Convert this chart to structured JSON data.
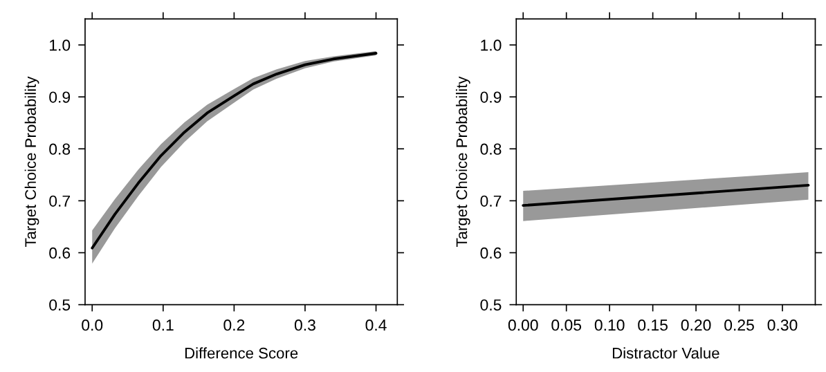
{
  "chart_data": [
    {
      "type": "line",
      "xlabel": "Difference Score",
      "ylabel": "Target Choice Probability",
      "xlim": [
        -0.01,
        0.43
      ],
      "xticks": [
        {
          "value": 0,
          "label": "0.0"
        },
        0.1,
        0.2,
        0.3,
        0.4
      ],
      "ylim": [
        0.5,
        1.05
      ],
      "yticks": [
        0.5,
        0.6,
        0.7,
        0.8,
        0.9,
        {
          "value": 1,
          "label": "1.0"
        }
      ],
      "grid": false,
      "legend": false,
      "marker": "none",
      "line_style": "solid",
      "x": [
        0,
        0.032,
        0.065,
        0.097,
        0.13,
        0.162,
        0.2,
        0.227,
        0.26,
        0.3,
        0.34,
        0.4
      ],
      "series": [
        {
          "color": "#000000",
          "values": [
            0.609,
            0.674,
            0.734,
            0.787,
            0.832,
            0.869,
            0.902,
            0.925,
            0.944,
            0.962,
            0.973,
            0.984
          ],
          "lower": [
            0.579,
            0.647,
            0.709,
            0.765,
            0.813,
            0.853,
            0.889,
            0.914,
            0.935,
            0.955,
            0.968,
            0.98
          ],
          "upper": [
            0.643,
            0.703,
            0.76,
            0.809,
            0.851,
            0.885,
            0.915,
            0.936,
            0.953,
            0.969,
            0.978,
            0.988
          ]
        }
      ]
    },
    {
      "type": "line",
      "xlabel": "Distractor Value",
      "ylabel": "Target Choice Probability",
      "xlim": [
        -0.008,
        0.338
      ],
      "xticks": [
        {
          "value": 0,
          "label": "0.00"
        },
        0.05,
        {
          "value": 0.1,
          "label": "0.10"
        },
        0.15,
        {
          "value": 0.2,
          "label": "0.20"
        },
        0.25,
        {
          "value": 0.3,
          "label": "0.30"
        }
      ],
      "ylim": [
        0.5,
        1.05
      ],
      "yticks": [
        0.5,
        0.6,
        0.7,
        0.8,
        0.9,
        {
          "value": 1,
          "label": "1.0"
        }
      ],
      "grid": false,
      "legend": false,
      "marker": "none",
      "line_style": "solid",
      "x": [
        0,
        0.33
      ],
      "series": [
        {
          "color": "#000000",
          "values": [
            0.691,
            0.73
          ],
          "lower": [
            0.661,
            0.702
          ],
          "upper": [
            0.719,
            0.755
          ]
        }
      ]
    }
  ]
}
